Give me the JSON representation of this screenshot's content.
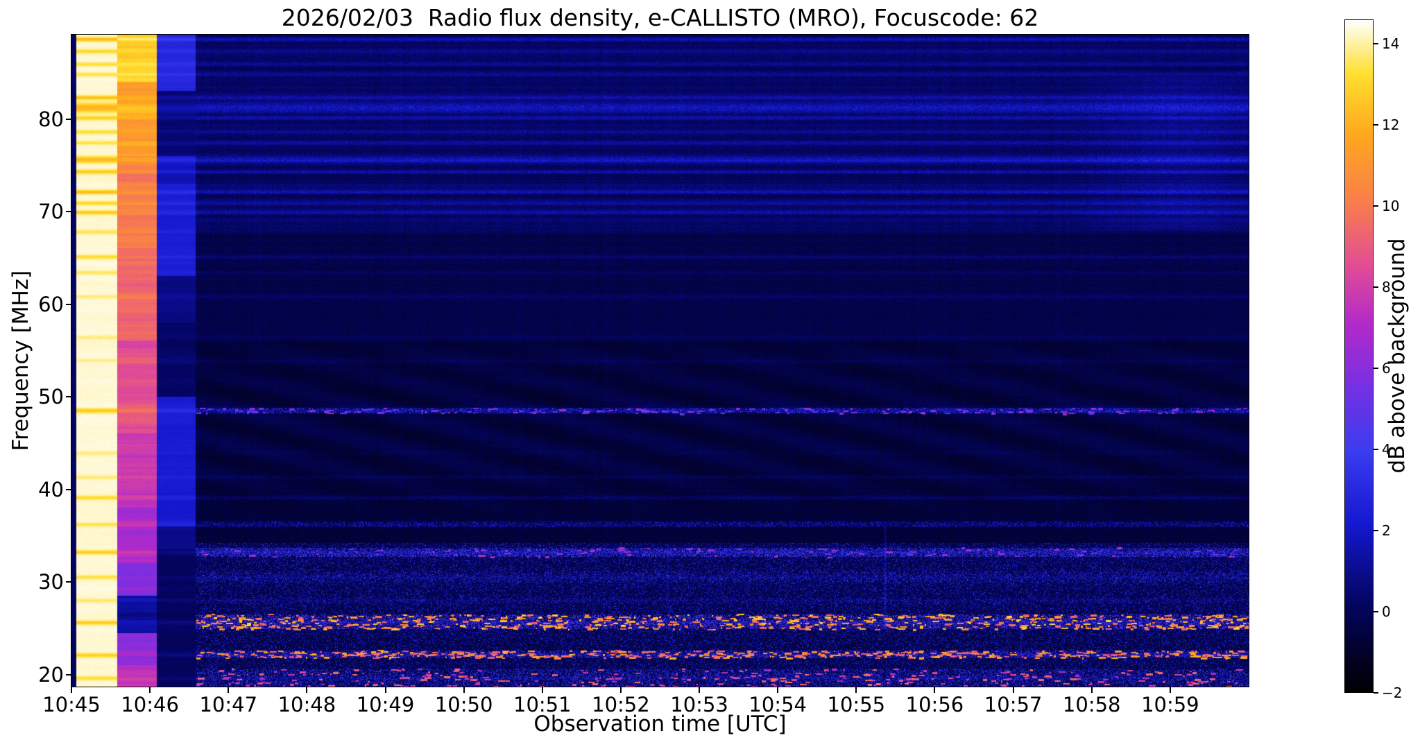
{
  "chart_data": {
    "type": "heatmap",
    "title": "2026/02/03  Radio flux density, e-CALLISTO (MRO), Focuscode: 62",
    "xlabel": "Observation time [UTC]",
    "ylabel": "Frequency [MHz]",
    "colorbar_label": "dB above background",
    "x_tick_labels": [
      "10:45",
      "10:46",
      "10:47",
      "10:48",
      "10:49",
      "10:50",
      "10:51",
      "10:52",
      "10:53",
      "10:54",
      "10:55",
      "10:56",
      "10:57",
      "10:58",
      "10:59"
    ],
    "x_range_minutes": [
      0,
      15
    ],
    "y_tick_values": [
      20,
      30,
      40,
      50,
      60,
      70,
      80
    ],
    "y_range_mhz": [
      18.7,
      89.1
    ],
    "value_range_db": [
      -2,
      14.6
    ],
    "colorbar_tick_values": [
      -2,
      0,
      2,
      4,
      6,
      8,
      10,
      12,
      14
    ],
    "grid": false,
    "legend": "none",
    "colormap_stops": [
      [
        0,
        "#000000"
      ],
      [
        0.13,
        "#04045e"
      ],
      [
        0.25,
        "#1418cf"
      ],
      [
        0.36,
        "#3c3cf0"
      ],
      [
        0.46,
        "#7a2fe2"
      ],
      [
        0.55,
        "#b32ac8"
      ],
      [
        0.63,
        "#e04b97"
      ],
      [
        0.73,
        "#f97e4b"
      ],
      [
        0.83,
        "#ffa81e"
      ],
      [
        0.92,
        "#ffdf2e"
      ],
      [
        1,
        "#ffffff"
      ]
    ],
    "features": {
      "calibration_bands": [
        {
          "start_min": 0.0,
          "end_min": 0.06,
          "profile": [
            [
              18.7,
              89.1,
              0.2
            ]
          ],
          "rowvar": 0.3,
          "lineadd": 0,
          "linesub": 0,
          "noise": 0.4,
          "note": "dark leading sliver"
        },
        {
          "start_min": 0.06,
          "end_min": 0.58,
          "profile": [
            [
              18.7,
              89.1,
              14.35
            ]
          ],
          "rowvar": 0.2,
          "lineadd": 0,
          "linesub": 1.1,
          "noise": 0.25,
          "note": "saturated white calibration step"
        },
        {
          "start_min": 0.58,
          "end_min": 1.08,
          "profile": [
            [
              84,
              89.1,
              12.8
            ],
            [
              76,
              84,
              11.3
            ],
            [
              66,
              76,
              10.2
            ],
            [
              56,
              66,
              9.3
            ],
            [
              46,
              56,
              8.6
            ],
            [
              38,
              46,
              7.8
            ],
            [
              32,
              38,
              7.0
            ],
            [
              28.5,
              32,
              5.8
            ],
            [
              24.5,
              28.5,
              1.2
            ],
            [
              21,
              24.5,
              6.2
            ],
            [
              18.7,
              21,
              7.6
            ]
          ],
          "rowvar": 1.3,
          "lineadd": 0.5,
          "linesub": 0,
          "noise": 0.5,
          "note": "orange/magenta calibration step"
        },
        {
          "start_min": 1.08,
          "end_min": 1.58,
          "profile": [
            [
              83,
              89.1,
              2.9
            ],
            [
              76,
              83,
              0.5
            ],
            [
              73,
              76,
              1.8
            ],
            [
              63,
              73,
              2.4
            ],
            [
              58,
              63,
              0.8
            ],
            [
              50,
              58,
              0.3
            ],
            [
              36,
              50,
              2.3
            ],
            [
              33.5,
              36,
              1.0
            ],
            [
              18.7,
              33.5,
              0.15
            ]
          ],
          "rowvar": 0.5,
          "lineadd": 0.5,
          "linesub": 0,
          "noise": 0.35,
          "note": "blue/dark transition column"
        }
      ],
      "interference_lines": [
        {
          "mhz": 88.6,
          "amp": 2.0
        },
        {
          "mhz": 87.3,
          "amp": 1.2
        },
        {
          "mhz": 85.9,
          "amp": 1.0
        },
        {
          "mhz": 84.8,
          "amp": 0.9
        },
        {
          "mhz": 82.3,
          "amp": 1.8
        },
        {
          "mhz": 81.2,
          "amp": 2.2,
          "width": 0.5
        },
        {
          "mhz": 80.1,
          "amp": 1.4
        },
        {
          "mhz": 78.6,
          "amp": 1.0
        },
        {
          "mhz": 77.4,
          "amp": 0.9
        },
        {
          "mhz": 75.6,
          "amp": 2.0,
          "width": 0.35
        },
        {
          "mhz": 74.3,
          "amp": 1.6
        },
        {
          "mhz": 72.1,
          "amp": 1.9
        },
        {
          "mhz": 70.9,
          "amp": 1.2
        },
        {
          "mhz": 69.9,
          "amp": 1.5
        },
        {
          "mhz": 67.8,
          "amp": 0.8
        },
        {
          "mhz": 65.1,
          "amp": 1.1
        },
        {
          "mhz": 63.4,
          "amp": 0.7
        },
        {
          "mhz": 60.8,
          "amp": 0.6
        },
        {
          "mhz": 56.4,
          "amp": 0.5
        },
        {
          "mhz": 53.9,
          "amp": 0.5
        },
        {
          "mhz": 48.5,
          "amp": 1.6,
          "width": 0.25
        },
        {
          "mhz": 43.9,
          "amp": 0.5
        },
        {
          "mhz": 41.3,
          "amp": 0.6
        },
        {
          "mhz": 39.1,
          "amp": 1.1
        },
        {
          "mhz": 36.2,
          "amp": 0.9
        },
        {
          "mhz": 33.2,
          "amp": 1.5
        },
        {
          "mhz": 30.5,
          "amp": 0.9
        },
        {
          "mhz": 28.0,
          "amp": 0.7
        },
        {
          "mhz": 25.6,
          "amp": 1.5
        },
        {
          "mhz": 22.1,
          "amp": 1.4
        },
        {
          "mhz": 19.6,
          "amp": 1.0
        },
        {
          "mhz": 18.4,
          "amp": 0.9
        }
      ],
      "speckle_bands": [
        {
          "mhz_low": 18.7,
          "mhz_high": 34.2,
          "speckle_density": 0.14,
          "speckle_db": 3.2
        },
        {
          "mhz_low": 32.7,
          "mhz_high": 33.7,
          "speckle_density": 0.45,
          "speckle_db": 4.2,
          "dash_density": 0.06,
          "dash_db": 7
        },
        {
          "mhz_low": 29.9,
          "mhz_high": 31.1,
          "speckle_density": 0.25,
          "speckle_db": 3.4
        },
        {
          "mhz_low": 27.6,
          "mhz_high": 28.3,
          "speckle_density": 0.2,
          "speckle_db": 3.2
        },
        {
          "mhz_low": 24.9,
          "mhz_high": 26.5,
          "speckle_density": 0.4,
          "speckle_db": 4.5,
          "dash_density": 0.42,
          "dash_db": 12.5
        },
        {
          "mhz_low": 21.8,
          "mhz_high": 22.6,
          "speckle_density": 0.3,
          "speckle_db": 4.2,
          "dash_density": 0.3,
          "dash_db": 11.5
        },
        {
          "mhz_low": 18.7,
          "mhz_high": 20.6,
          "speckle_density": 0.3,
          "speckle_db": 3.8,
          "dash_density": 0.18,
          "dash_db": 9.5
        },
        {
          "mhz_low": 48.2,
          "mhz_high": 48.8,
          "speckle_density": 0.35,
          "speckle_db": 3.6,
          "dash_density": 0.1,
          "dash_db": 6.5
        },
        {
          "mhz_low": 35.9,
          "mhz_high": 36.5,
          "speckle_density": 0.2,
          "speckle_db": 3.0
        }
      ],
      "background_regions": [
        {
          "mhz_low": 68,
          "mhz_high": 89.1,
          "boost_db": 1.1,
          "note": "streaky blue upper band"
        },
        {
          "mhz_low": 56,
          "mhz_high": 68,
          "boost_db": 0.3
        },
        {
          "mhz_low": 18.7,
          "mhz_high": 34.2,
          "boost_db": 0.55,
          "note": "textured lower band"
        }
      ],
      "wave_pattern": {
        "mhz_low": 36,
        "mhz_high": 58,
        "amp_db": 0.5,
        "note": "faint wavy ripples mid-band"
      },
      "vertical_streaks": [
        {
          "center_min": 14.1,
          "width_min": 0.9,
          "amp_db": 0.65,
          "mhz_low": 68,
          "mhz_high": 84.5,
          "note": "brighter upper band near 10:59"
        },
        {
          "center_min": 10.37,
          "width_min": 0.012,
          "amp_db": 1.6,
          "mhz_low": 25,
          "mhz_high": 36
        },
        {
          "center_min": 7.6,
          "width_min": 0.01,
          "amp_db": 1.2,
          "mhz_low": 26,
          "mhz_high": 34
        },
        {
          "center_min": 12.1,
          "width_min": 0.015,
          "amp_db": 1.0,
          "mhz_low": 18.7,
          "mhz_high": 26
        }
      ]
    }
  }
}
